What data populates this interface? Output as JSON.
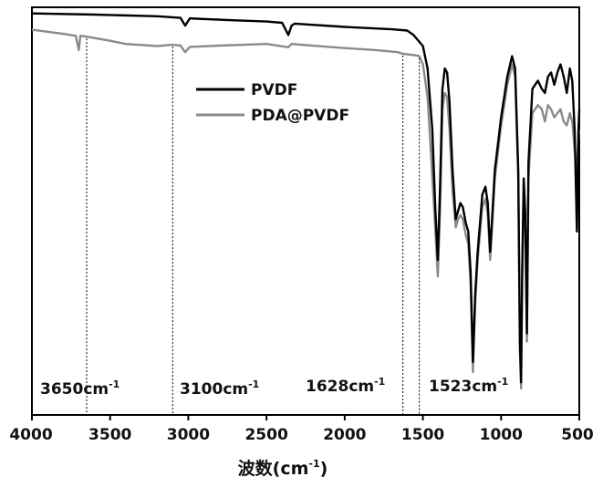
{
  "chart_data": {
    "type": "line",
    "xlabel": "波数(cm",
    "xlabel_sup": "-1",
    "xlabel_tail": ")",
    "xlim": [
      4000,
      500
    ],
    "ylim": [
      0,
      100
    ],
    "x_ticks": [
      4000,
      3500,
      3000,
      2500,
      2000,
      1500,
      1000,
      500
    ],
    "legend_position": "upper-center",
    "series": [
      {
        "name": "PVDF",
        "color": "#000000",
        "points": [
          [
            4000,
            98.5
          ],
          [
            3600,
            98.2
          ],
          [
            3200,
            97.8
          ],
          [
            3050,
            97.4
          ],
          [
            3020,
            95.5
          ],
          [
            2990,
            97.3
          ],
          [
            2950,
            97.2
          ],
          [
            2700,
            96.8
          ],
          [
            2500,
            96.5
          ],
          [
            2400,
            96.2
          ],
          [
            2360,
            93.2
          ],
          [
            2340,
            95.5
          ],
          [
            2320,
            96.0
          ],
          [
            2000,
            95.2
          ],
          [
            1700,
            94.6
          ],
          [
            1600,
            94.3
          ],
          [
            1560,
            93.2
          ],
          [
            1500,
            90.5
          ],
          [
            1470,
            85.0
          ],
          [
            1440,
            70.0
          ],
          [
            1420,
            50.0
          ],
          [
            1405,
            38.0
          ],
          [
            1390,
            56.0
          ],
          [
            1375,
            80.0
          ],
          [
            1360,
            85.0
          ],
          [
            1345,
            84.0
          ],
          [
            1330,
            77.0
          ],
          [
            1310,
            60.0
          ],
          [
            1290,
            48.0
          ],
          [
            1275,
            50.0
          ],
          [
            1260,
            52.0
          ],
          [
            1245,
            51.0
          ],
          [
            1225,
            47.0
          ],
          [
            1210,
            45.0
          ],
          [
            1195,
            35.0
          ],
          [
            1180,
            13.0
          ],
          [
            1165,
            30.0
          ],
          [
            1150,
            40.0
          ],
          [
            1120,
            54.0
          ],
          [
            1100,
            56.0
          ],
          [
            1085,
            52.0
          ],
          [
            1070,
            40.0
          ],
          [
            1055,
            50.0
          ],
          [
            1040,
            60.0
          ],
          [
            1000,
            73.0
          ],
          [
            960,
            83.0
          ],
          [
            930,
            88.0
          ],
          [
            910,
            85.0
          ],
          [
            890,
            60.0
          ],
          [
            880,
            18.0
          ],
          [
            872,
            8.0
          ],
          [
            865,
            35.0
          ],
          [
            855,
            58.0
          ],
          [
            846,
            50.0
          ],
          [
            835,
            20.0
          ],
          [
            825,
            62.0
          ],
          [
            800,
            80.0
          ],
          [
            765,
            82.0
          ],
          [
            740,
            80.0
          ],
          [
            720,
            79.0
          ],
          [
            700,
            83.0
          ],
          [
            680,
            84.0
          ],
          [
            660,
            81.0
          ],
          [
            640,
            84.0
          ],
          [
            620,
            86.0
          ],
          [
            600,
            83.0
          ],
          [
            580,
            79.0
          ],
          [
            560,
            85.0
          ],
          [
            545,
            82.0
          ],
          [
            530,
            70.0
          ],
          [
            515,
            45.0
          ],
          [
            505,
            70.0
          ],
          [
            500,
            75.0
          ]
        ]
      },
      {
        "name": "PDA@PVDF",
        "color": "#8a8a8a",
        "points": [
          [
            4000,
            94.5
          ],
          [
            3800,
            93.5
          ],
          [
            3720,
            93.0
          ],
          [
            3700,
            89.5
          ],
          [
            3690,
            93.0
          ],
          [
            3650,
            92.8
          ],
          [
            3500,
            91.8
          ],
          [
            3400,
            91.0
          ],
          [
            3200,
            90.5
          ],
          [
            3100,
            90.8
          ],
          [
            3050,
            90.6
          ],
          [
            3020,
            89.0
          ],
          [
            2990,
            90.3
          ],
          [
            2800,
            90.6
          ],
          [
            2500,
            91.0
          ],
          [
            2360,
            90.2
          ],
          [
            2340,
            91.0
          ],
          [
            2100,
            90.3
          ],
          [
            2000,
            90.0
          ],
          [
            1800,
            89.5
          ],
          [
            1660,
            89.0
          ],
          [
            1628,
            88.6
          ],
          [
            1560,
            88.3
          ],
          [
            1523,
            88.0
          ],
          [
            1500,
            86.0
          ],
          [
            1470,
            78.0
          ],
          [
            1445,
            62.0
          ],
          [
            1420,
            45.0
          ],
          [
            1405,
            34.0
          ],
          [
            1390,
            50.0
          ],
          [
            1375,
            75.0
          ],
          [
            1360,
            79.0
          ],
          [
            1345,
            78.0
          ],
          [
            1330,
            70.0
          ],
          [
            1310,
            55.0
          ],
          [
            1290,
            46.0
          ],
          [
            1275,
            48.0
          ],
          [
            1260,
            49.0
          ],
          [
            1245,
            48.0
          ],
          [
            1225,
            44.0
          ],
          [
            1210,
            42.0
          ],
          [
            1195,
            32.0
          ],
          [
            1180,
            10.5
          ],
          [
            1165,
            28.0
          ],
          [
            1150,
            38.0
          ],
          [
            1120,
            51.0
          ],
          [
            1100,
            53.0
          ],
          [
            1085,
            49.0
          ],
          [
            1070,
            38.0
          ],
          [
            1055,
            48.0
          ],
          [
            1040,
            58.0
          ],
          [
            1000,
            71.0
          ],
          [
            960,
            81.0
          ],
          [
            930,
            86.0
          ],
          [
            910,
            83.0
          ],
          [
            890,
            58.0
          ],
          [
            880,
            16.0
          ],
          [
            872,
            6.5
          ],
          [
            865,
            33.0
          ],
          [
            855,
            56.0
          ],
          [
            846,
            48.0
          ],
          [
            835,
            18.0
          ],
          [
            825,
            58.0
          ],
          [
            800,
            74.0
          ],
          [
            765,
            76.0
          ],
          [
            740,
            75.0
          ],
          [
            720,
            72.0
          ],
          [
            700,
            76.0
          ],
          [
            680,
            75.0
          ],
          [
            660,
            73.0
          ],
          [
            640,
            74.0
          ],
          [
            620,
            75.0
          ],
          [
            600,
            72.0
          ],
          [
            580,
            71.0
          ],
          [
            560,
            74.0
          ],
          [
            545,
            72.0
          ],
          [
            530,
            65.0
          ],
          [
            515,
            60.0
          ],
          [
            505,
            68.0
          ],
          [
            500,
            70.0
          ]
        ]
      }
    ],
    "annotations": [
      {
        "x": 3650,
        "text": "3650cm",
        "sup": "-1"
      },
      {
        "x": 3100,
        "text": "3100cm",
        "sup": "-1"
      },
      {
        "x": 1628,
        "text": "1628cm",
        "sup": "-1"
      },
      {
        "x": 1523,
        "text": "1523cm",
        "sup": "-1"
      }
    ]
  }
}
